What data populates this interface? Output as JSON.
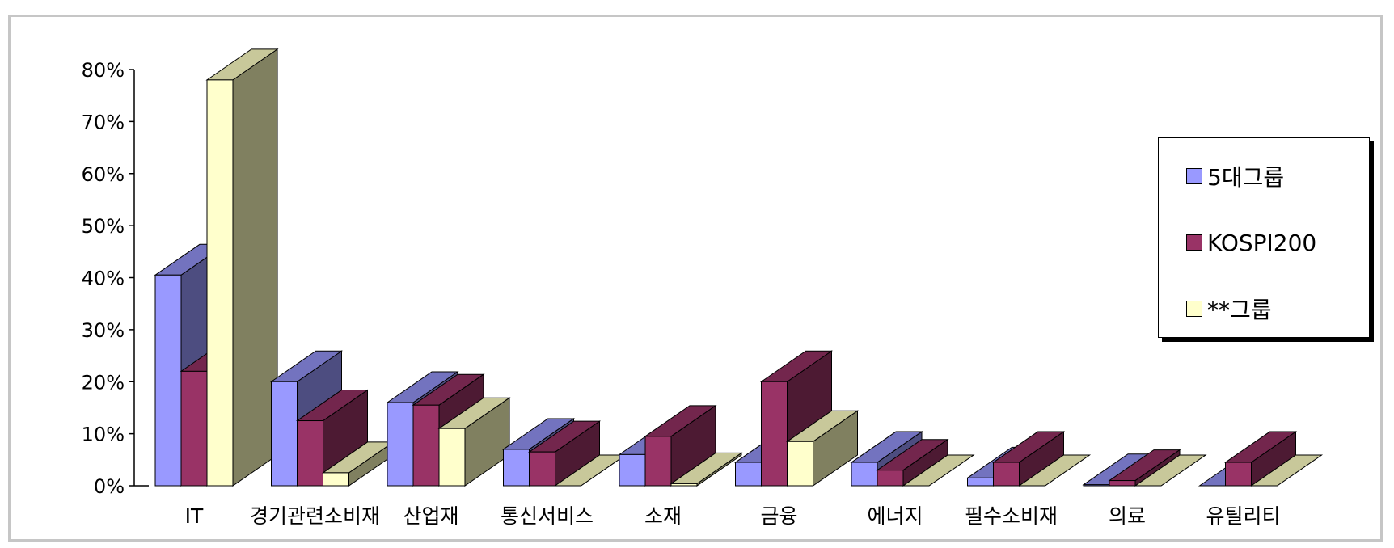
{
  "chart_data": {
    "type": "bar",
    "title": "",
    "xlabel": "",
    "ylabel": "",
    "ylim": [
      0,
      80
    ],
    "yticks": [
      "0%",
      "10%",
      "20%",
      "30%",
      "40%",
      "50%",
      "60%",
      "70%",
      "80%"
    ],
    "categories": [
      "IT",
      "경기관련소비재",
      "산업재",
      "통신서비스",
      "소재",
      "금융",
      "에너지",
      "필수소비재",
      "의료",
      "유틸리티"
    ],
    "series": [
      {
        "name": "5대그룹",
        "color": "#9999ff",
        "values": [
          40.5,
          20,
          16,
          7,
          6,
          4.5,
          4.5,
          1.5,
          0.2,
          0
        ]
      },
      {
        "name": "KOSPI200",
        "color": "#993366",
        "values": [
          22,
          12.5,
          15.5,
          6.5,
          9.5,
          20,
          3,
          4.5,
          1,
          4.5
        ]
      },
      {
        "name": "**그룹",
        "color": "#ffffcc",
        "values": [
          78,
          2.5,
          11,
          0,
          0.4,
          8.5,
          0,
          0,
          0,
          0
        ]
      }
    ],
    "legend_position": "right",
    "grid": false
  }
}
